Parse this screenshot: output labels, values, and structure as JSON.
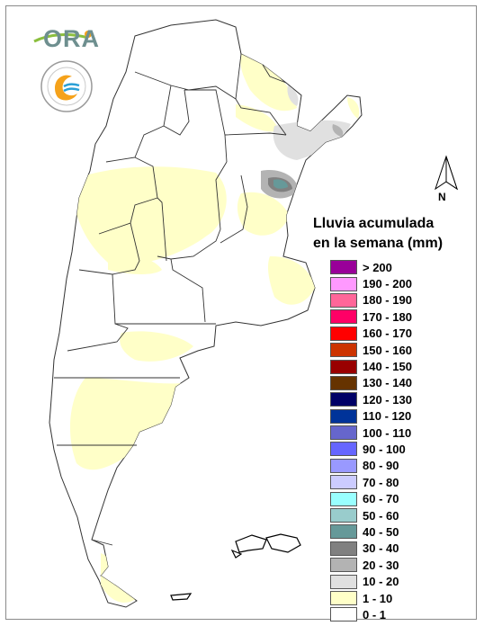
{
  "logo": {
    "ora_text": "ORA",
    "seal_icon": "smn-seal-icon"
  },
  "north": {
    "label": "N"
  },
  "legend": {
    "title_line1": "Lluvia acumulada",
    "title_line2": "en la semana (mm)",
    "items": [
      {
        "label": "> 200",
        "color": "#990099"
      },
      {
        "label": "190 - 200",
        "color": "#ff99ff"
      },
      {
        "label": "180 - 190",
        "color": "#ff6699"
      },
      {
        "label": "170 - 180",
        "color": "#ff0066"
      },
      {
        "label": "160 - 170",
        "color": "#ff0000"
      },
      {
        "label": "150 - 160",
        "color": "#cc3300"
      },
      {
        "label": "140 - 150",
        "color": "#990000"
      },
      {
        "label": "130 - 140",
        "color": "#663300"
      },
      {
        "label": "120 - 130",
        "color": "#000066"
      },
      {
        "label": "110 - 120",
        "color": "#003399"
      },
      {
        "label": "100 - 110",
        "color": "#6666cc"
      },
      {
        "label": "90 - 100",
        "color": "#6666ff"
      },
      {
        "label": "80 - 90",
        "color": "#9999ff"
      },
      {
        "label": "70 - 80",
        "color": "#ccccff"
      },
      {
        "label": "60 - 70",
        "color": "#99ffff"
      },
      {
        "label": "50 - 60",
        "color": "#99cccc"
      },
      {
        "label": "40 - 50",
        "color": "#669999"
      },
      {
        "label": "30 - 40",
        "color": "#808080"
      },
      {
        "label": "20 - 30",
        "color": "#b3b3b3"
      },
      {
        "label": "10 - 20",
        "color": "#e0e0e0"
      },
      {
        "label": "1 - 10",
        "color": "#ffffc8"
      },
      {
        "label": "0 - 1",
        "color": "#ffffff"
      }
    ]
  }
}
